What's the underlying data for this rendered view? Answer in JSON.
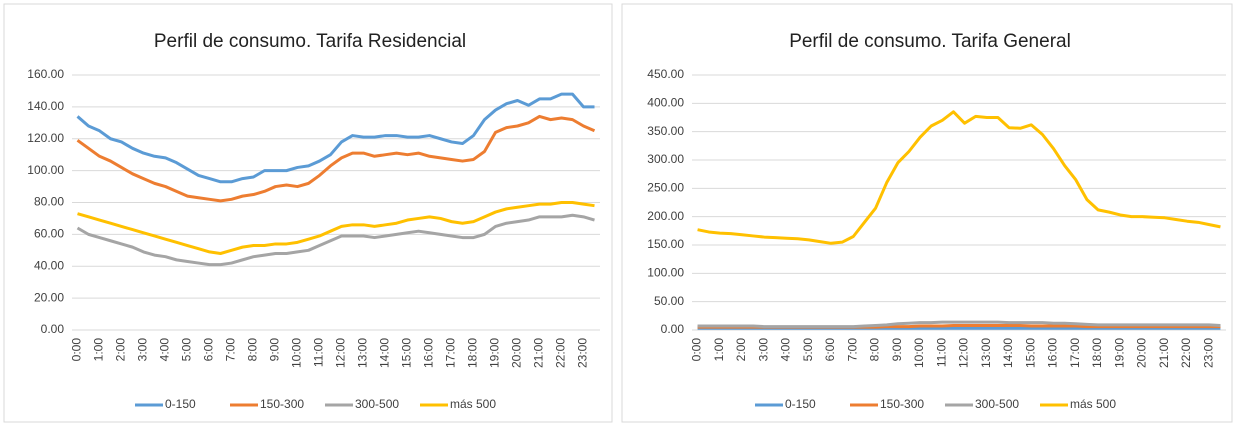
{
  "chart_data": [
    {
      "type": "line",
      "title": "Perfil de consumo. Tarifa Residencial",
      "categories": [
        "0:00",
        null,
        "1:00",
        null,
        "2:00",
        null,
        "3:00",
        null,
        "4:00",
        null,
        "5:00",
        null,
        "6:00",
        null,
        "7:00",
        null,
        "8:00",
        null,
        "9:00",
        null,
        "10:00",
        null,
        "11:00",
        null,
        "12:00",
        null,
        "13:00",
        null,
        "14:00",
        null,
        "15:00",
        null,
        "16:00",
        null,
        "17:00",
        null,
        "18:00",
        null,
        "19:00",
        null,
        "20:00",
        null,
        "21:00",
        null,
        "22:00",
        null,
        "23:00",
        null
      ],
      "ylim": [
        0,
        160
      ],
      "yticks": [
        {
          "value": 0,
          "label": "0.00"
        },
        {
          "value": 20,
          "label": "20.00"
        },
        {
          "value": 40,
          "label": "40.00"
        },
        {
          "value": 60,
          "label": "60.00"
        },
        {
          "value": 80,
          "label": "80.00"
        },
        {
          "value": 100,
          "label": "100.00"
        },
        {
          "value": 120,
          "label": "120.00"
        },
        {
          "value": 140,
          "label": "140.00"
        },
        {
          "value": 160,
          "label": "160.00"
        }
      ],
      "grid": true,
      "legend": "bottom",
      "series": [
        {
          "name": "0-150",
          "color": "#5b9bd5",
          "values": [
            134,
            128,
            125,
            120,
            118,
            114,
            111,
            109,
            108,
            105,
            101,
            97,
            95,
            93,
            93,
            95,
            96,
            100,
            100,
            100,
            102,
            103,
            106,
            110,
            118,
            122,
            121,
            121,
            122,
            122,
            121,
            121,
            122,
            120,
            118,
            117,
            122,
            132,
            138,
            142,
            144,
            141,
            145,
            145,
            148,
            148,
            140,
            140
          ]
        },
        {
          "name": "150-300",
          "color": "#ed7d31",
          "values": [
            119,
            114,
            109,
            106,
            102,
            98,
            95,
            92,
            90,
            87,
            84,
            83,
            82,
            81,
            82,
            84,
            85,
            87,
            90,
            91,
            90,
            92,
            97,
            103,
            108,
            111,
            111,
            109,
            110,
            111,
            110,
            111,
            109,
            108,
            107,
            106,
            107,
            112,
            124,
            127,
            128,
            130,
            134,
            132,
            133,
            132,
            128,
            125
          ]
        },
        {
          "name": "300-500",
          "color": "#a5a5a5",
          "values": [
            64,
            60,
            58,
            56,
            54,
            52,
            49,
            47,
            46,
            44,
            43,
            42,
            41,
            41,
            42,
            44,
            46,
            47,
            48,
            48,
            49,
            50,
            53,
            56,
            59,
            59,
            59,
            58,
            59,
            60,
            61,
            62,
            61,
            60,
            59,
            58,
            58,
            60,
            65,
            67,
            68,
            69,
            71,
            71,
            71,
            72,
            71,
            69
          ]
        },
        {
          "name": "más 500",
          "color": "#ffc000",
          "values": [
            73,
            71,
            69,
            67,
            65,
            63,
            61,
            59,
            57,
            55,
            53,
            51,
            49,
            48,
            50,
            52,
            53,
            53,
            54,
            54,
            55,
            57,
            59,
            62,
            65,
            66,
            66,
            65,
            66,
            67,
            69,
            70,
            71,
            70,
            68,
            67,
            68,
            71,
            74,
            76,
            77,
            78,
            79,
            79,
            80,
            80,
            79,
            78
          ]
        }
      ]
    },
    {
      "type": "line",
      "title": "Perfil de consumo. Tarifa General",
      "categories": [
        "0:00",
        null,
        "1:00",
        null,
        "2:00",
        null,
        "3:00",
        null,
        "4:00",
        null,
        "5:00",
        null,
        "6:00",
        null,
        "7:00",
        null,
        "8:00",
        null,
        "9:00",
        null,
        "10:00",
        null,
        "11:00",
        null,
        "12:00",
        null,
        "13:00",
        null,
        "14:00",
        null,
        "15:00",
        null,
        "16:00",
        null,
        "17:00",
        null,
        "18:00",
        null,
        "19:00",
        null,
        "20:00",
        null,
        "21:00",
        null,
        "22:00",
        null,
        "23:00",
        null
      ],
      "ylim": [
        0,
        450
      ],
      "yticks": [
        {
          "value": 0,
          "label": "0.00"
        },
        {
          "value": 50,
          "label": "50.00"
        },
        {
          "value": 100,
          "label": "100.00"
        },
        {
          "value": 150,
          "label": "150.00"
        },
        {
          "value": 200,
          "label": "200.00"
        },
        {
          "value": 250,
          "label": "250.00"
        },
        {
          "value": 300,
          "label": "300.00"
        },
        {
          "value": 350,
          "label": "350.00"
        },
        {
          "value": 400,
          "label": "400.00"
        },
        {
          "value": 450,
          "label": "450.00"
        }
      ],
      "grid": true,
      "legend": "bottom",
      "series": [
        {
          "name": "0-150",
          "color": "#5b9bd5",
          "values": [
            3,
            3,
            3,
            3,
            3,
            3,
            3,
            3,
            3,
            3,
            3,
            3,
            3,
            3,
            3,
            3,
            3,
            3,
            3,
            3,
            3,
            3,
            3,
            3,
            3,
            3,
            3,
            3,
            3,
            3,
            3,
            3,
            3,
            3,
            3,
            3,
            3,
            3,
            3,
            3,
            3,
            3,
            3,
            3,
            3,
            3,
            3,
            3
          ]
        },
        {
          "name": "150-300",
          "color": "#ed7d31",
          "values": [
            5,
            5,
            5,
            5,
            5,
            5,
            5,
            5,
            5,
            5,
            5,
            5,
            5,
            5,
            5,
            5,
            5,
            6,
            6,
            6,
            7,
            7,
            7,
            8,
            8,
            8,
            8,
            8,
            8,
            8,
            7,
            7,
            7,
            7,
            7,
            6,
            6,
            6,
            6,
            6,
            6,
            6,
            6,
            6,
            6,
            6,
            6,
            6
          ]
        },
        {
          "name": "300-500",
          "color": "#a5a5a5",
          "values": [
            7,
            7,
            7,
            7,
            7,
            7,
            6,
            6,
            6,
            6,
            6,
            6,
            6,
            6,
            6,
            7,
            8,
            9,
            11,
            12,
            13,
            13,
            14,
            14,
            14,
            14,
            14,
            14,
            13,
            13,
            13,
            13,
            12,
            12,
            11,
            10,
            9,
            9,
            9,
            9,
            9,
            9,
            9,
            9,
            9,
            9,
            9,
            8
          ]
        },
        {
          "name": "más 500",
          "color": "#ffc000",
          "values": [
            177,
            173,
            171,
            170,
            168,
            166,
            164,
            163,
            162,
            161,
            159,
            156,
            153,
            155,
            165,
            190,
            215,
            260,
            295,
            315,
            340,
            360,
            370,
            385,
            365,
            377,
            375,
            375,
            357,
            356,
            362,
            345,
            320,
            290,
            265,
            230,
            212,
            208,
            203,
            200,
            200,
            199,
            198,
            195,
            192,
            190,
            186,
            182
          ]
        }
      ]
    }
  ]
}
